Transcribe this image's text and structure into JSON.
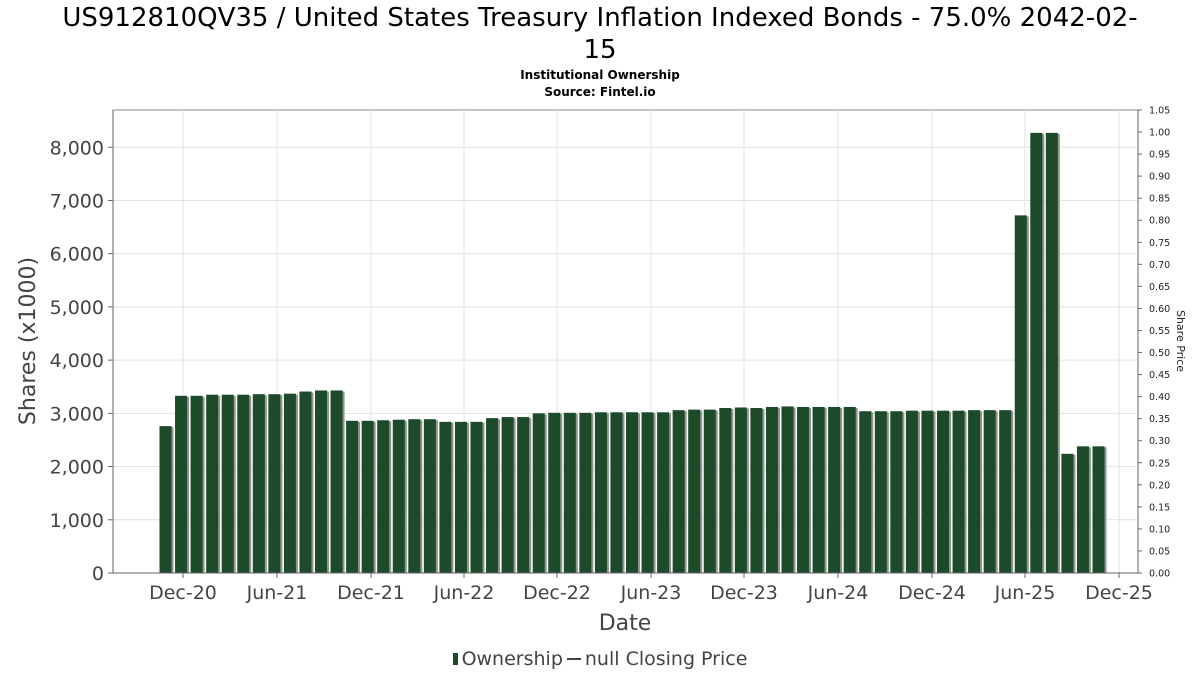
{
  "chart_data": {
    "type": "bar",
    "title": "US912810QV35 / United States Treasury Inflation Indexed Bonds - 75.0% 2042-02-15",
    "title_line1": "US912810QV35 / United States Treasury Inflation Indexed Bonds - 75.0% 2042-02-",
    "title_line2": "15",
    "subtitle": "Institutional Ownership",
    "source": "Source: Fintel.io",
    "xlabel": "Date",
    "ylabel": "Shares (x1000)",
    "y2label": "Share Price",
    "ylim": [
      0,
      8700
    ],
    "y2lim": [
      0,
      1.05
    ],
    "yticks": [
      "0",
      "1,000",
      "2,000",
      "3,000",
      "4,000",
      "5,000",
      "6,000",
      "7,000",
      "8,000"
    ],
    "y2ticks": [
      "0.00",
      "0.05",
      "0.10",
      "0.15",
      "0.20",
      "0.25",
      "0.30",
      "0.35",
      "0.40",
      "0.45",
      "0.50",
      "0.55",
      "0.60",
      "0.65",
      "0.70",
      "0.75",
      "0.80",
      "0.85",
      "0.90",
      "0.95",
      "1.00",
      "1.05"
    ],
    "xticks": [
      "Dec-20",
      "Jun-21",
      "Dec-21",
      "Jun-22",
      "Dec-22",
      "Jun-23",
      "Dec-23",
      "Jun-24",
      "Dec-24",
      "Jun-25",
      "Dec-25"
    ],
    "series": [
      {
        "name": "Ownership",
        "color": "#1d4a2b",
        "values": [
          2760,
          3330,
          3330,
          3350,
          3350,
          3350,
          3360,
          3360,
          3370,
          3410,
          3430,
          3430,
          2860,
          2860,
          2870,
          2880,
          2890,
          2890,
          2840,
          2840,
          2840,
          2910,
          2930,
          2930,
          3000,
          3010,
          3010,
          3010,
          3020,
          3020,
          3020,
          3020,
          3020,
          3060,
          3070,
          3070,
          3100,
          3110,
          3100,
          3120,
          3130,
          3120,
          3120,
          3120,
          3120,
          3040,
          3040,
          3040,
          3050,
          3050,
          3050,
          3050,
          3060,
          3060,
          3060,
          6720,
          8270,
          8270,
          2240,
          2380,
          2380
        ]
      }
    ],
    "legend": {
      "ownership": "Ownership",
      "closing_price": "null Closing Price"
    }
  }
}
